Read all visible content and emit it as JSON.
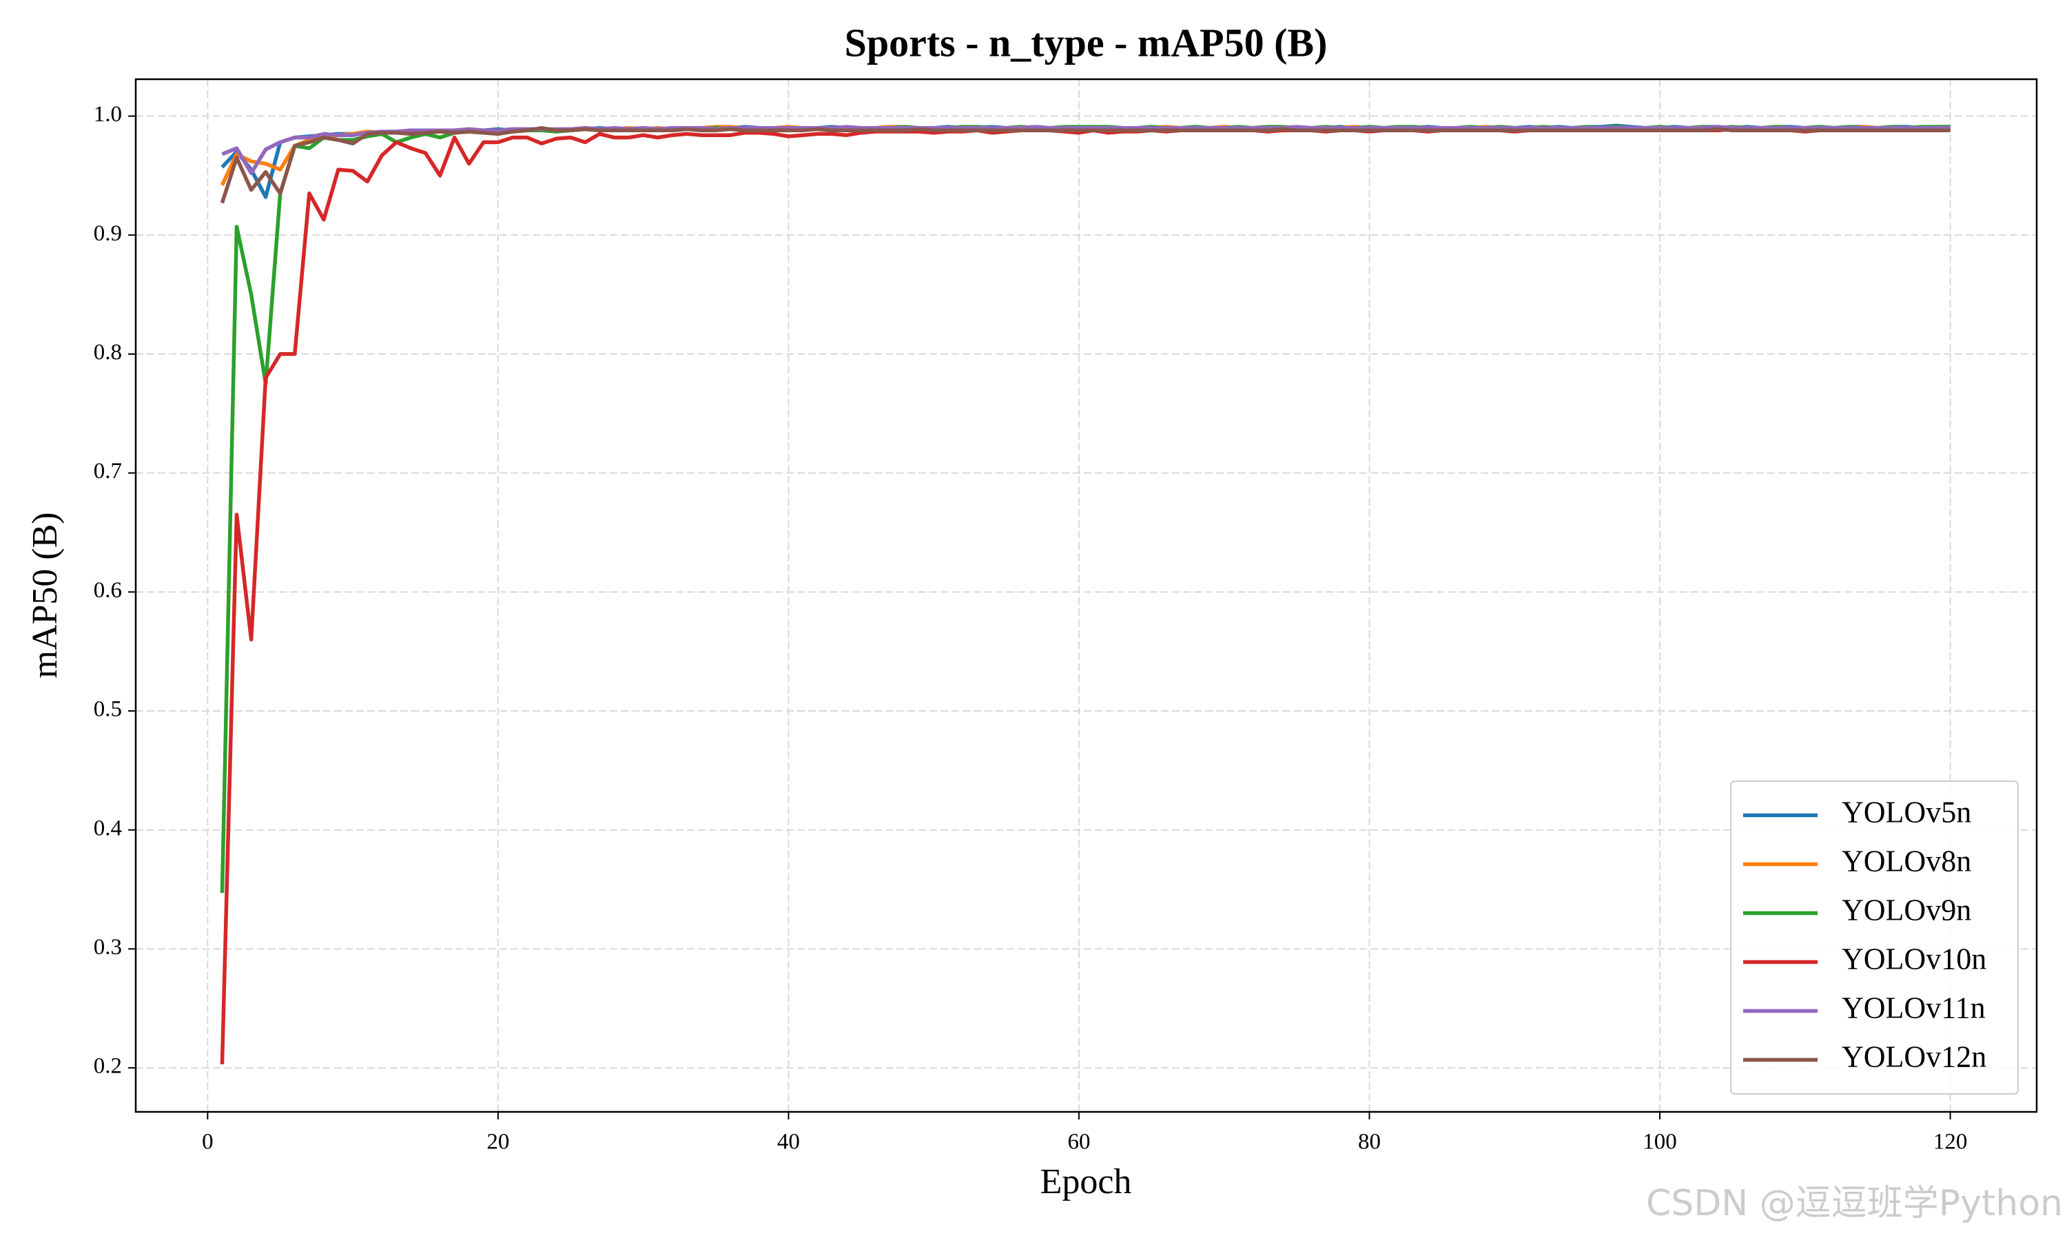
{
  "chart_data": {
    "type": "line",
    "title": "Sports - n_type - mAP50 (B)",
    "x_label": "Epoch",
    "y_label": "mAP50 (B)",
    "watermark": "CSDN @逗逗班学Python",
    "x": [
      1,
      2,
      3,
      4,
      5,
      6,
      7,
      8,
      9,
      10,
      11,
      12,
      13,
      14,
      15,
      16,
      17,
      18,
      19,
      20,
      21,
      22,
      23,
      24,
      25,
      26,
      27,
      28,
      29,
      30,
      31,
      32,
      33,
      34,
      35,
      36,
      37,
      38,
      39,
      40,
      41,
      42,
      43,
      44,
      45,
      46,
      47,
      48,
      49,
      50,
      51,
      52,
      53,
      54,
      55,
      56,
      57,
      58,
      59,
      60,
      61,
      62,
      63,
      64,
      65,
      66,
      67,
      68,
      69,
      70,
      71,
      72,
      73,
      74,
      75,
      76,
      77,
      78,
      79,
      80,
      81,
      82,
      83,
      84,
      85,
      86,
      87,
      88,
      89,
      90,
      91,
      92,
      93,
      94,
      95,
      96,
      97,
      98,
      99,
      100,
      101,
      102,
      103,
      104,
      105,
      106,
      107,
      108,
      109,
      110,
      111,
      112,
      113,
      114,
      115,
      116,
      117,
      118,
      119,
      120
    ],
    "series": [
      {
        "name": "YOLOv5n",
        "color": "#1f77b4",
        "values": [
          0.957,
          0.97,
          0.955,
          0.932,
          0.978,
          0.982,
          0.983,
          0.984,
          0.985,
          0.985,
          0.986,
          0.986,
          0.987,
          0.987,
          0.987,
          0.988,
          0.988,
          0.987,
          0.988,
          0.989,
          0.988,
          0.989,
          0.989,
          0.988,
          0.989,
          0.989,
          0.99,
          0.989,
          0.989,
          0.99,
          0.989,
          0.99,
          0.99,
          0.989,
          0.99,
          0.99,
          0.991,
          0.99,
          0.99,
          0.989,
          0.99,
          0.99,
          0.991,
          0.99,
          0.989,
          0.99,
          0.991,
          0.99,
          0.99,
          0.99,
          0.991,
          0.99,
          0.99,
          0.991,
          0.99,
          0.99,
          0.991,
          0.99,
          0.99,
          0.991,
          0.99,
          0.991,
          0.99,
          0.99,
          0.991,
          0.99,
          0.99,
          0.991,
          0.99,
          0.991,
          0.99,
          0.99,
          0.991,
          0.99,
          0.991,
          0.99,
          0.99,
          0.991,
          0.99,
          0.991,
          0.99,
          0.991,
          0.99,
          0.991,
          0.99,
          0.99,
          0.991,
          0.99,
          0.991,
          0.99,
          0.991,
          0.99,
          0.991,
          0.99,
          0.991,
          0.991,
          0.992,
          0.991,
          0.99,
          0.99,
          0.991,
          0.99,
          0.991,
          0.991,
          0.99,
          0.991,
          0.99,
          0.991,
          0.991,
          0.99,
          0.991,
          0.99,
          0.991,
          0.991,
          0.99,
          0.991,
          0.991,
          0.99,
          0.991,
          0.991
        ]
      },
      {
        "name": "YOLOv8n",
        "color": "#ff7f0e",
        "values": [
          0.942,
          0.968,
          0.962,
          0.96,
          0.955,
          0.975,
          0.98,
          0.982,
          0.984,
          0.985,
          0.987,
          0.986,
          0.987,
          0.988,
          0.987,
          0.988,
          0.988,
          0.989,
          0.988,
          0.988,
          0.989,
          0.989,
          0.988,
          0.989,
          0.989,
          0.99,
          0.989,
          0.989,
          0.99,
          0.989,
          0.99,
          0.989,
          0.99,
          0.99,
          0.991,
          0.991,
          0.99,
          0.989,
          0.99,
          0.991,
          0.99,
          0.99,
          0.989,
          0.99,
          0.99,
          0.99,
          0.991,
          0.991,
          0.99,
          0.99,
          0.99,
          0.991,
          0.99,
          0.99,
          0.99,
          0.991,
          0.99,
          0.99,
          0.99,
          0.99,
          0.991,
          0.99,
          0.99,
          0.99,
          0.99,
          0.991,
          0.99,
          0.99,
          0.99,
          0.991,
          0.99,
          0.99,
          0.991,
          0.991,
          0.99,
          0.99,
          0.99,
          0.99,
          0.991,
          0.99,
          0.99,
          0.99,
          0.991,
          0.99,
          0.99,
          0.99,
          0.99,
          0.991,
          0.99,
          0.99,
          0.99,
          0.991,
          0.99,
          0.99,
          0.99,
          0.99,
          0.991,
          0.99,
          0.99,
          0.99,
          0.99,
          0.99,
          0.991,
          0.99,
          0.99,
          0.99,
          0.99,
          0.991,
          0.99,
          0.99,
          0.99,
          0.99,
          0.99,
          0.991,
          0.99,
          0.99,
          0.99,
          0.99,
          0.99,
          0.99
        ]
      },
      {
        "name": "YOLOv9n",
        "color": "#2ca02c",
        "values": [
          0.347,
          0.907,
          0.85,
          0.775,
          0.935,
          0.975,
          0.973,
          0.982,
          0.98,
          0.98,
          0.983,
          0.985,
          0.978,
          0.982,
          0.985,
          0.982,
          0.986,
          0.987,
          0.986,
          0.987,
          0.987,
          0.988,
          0.988,
          0.987,
          0.988,
          0.989,
          0.988,
          0.988,
          0.989,
          0.989,
          0.989,
          0.988,
          0.989,
          0.989,
          0.99,
          0.989,
          0.989,
          0.99,
          0.989,
          0.99,
          0.989,
          0.99,
          0.99,
          0.989,
          0.99,
          0.99,
          0.99,
          0.991,
          0.99,
          0.99,
          0.99,
          0.991,
          0.991,
          0.99,
          0.99,
          0.991,
          0.99,
          0.99,
          0.991,
          0.991,
          0.991,
          0.991,
          0.99,
          0.99,
          0.991,
          0.99,
          0.99,
          0.991,
          0.99,
          0.99,
          0.991,
          0.99,
          0.991,
          0.991,
          0.99,
          0.99,
          0.991,
          0.99,
          0.99,
          0.991,
          0.99,
          0.991,
          0.991,
          0.99,
          0.99,
          0.99,
          0.991,
          0.99,
          0.991,
          0.99,
          0.99,
          0.991,
          0.99,
          0.99,
          0.991,
          0.99,
          0.991,
          0.99,
          0.99,
          0.991,
          0.99,
          0.99,
          0.991,
          0.99,
          0.991,
          0.99,
          0.99,
          0.991,
          0.99,
          0.99,
          0.991,
          0.99,
          0.991,
          0.99,
          0.99,
          0.991,
          0.99,
          0.991,
          0.991,
          0.991
        ]
      },
      {
        "name": "YOLOv10n",
        "color": "#d62728",
        "values": [
          0.203,
          0.665,
          0.56,
          0.78,
          0.8,
          0.8,
          0.935,
          0.913,
          0.955,
          0.954,
          0.945,
          0.967,
          0.978,
          0.973,
          0.969,
          0.95,
          0.982,
          0.96,
          0.978,
          0.978,
          0.982,
          0.982,
          0.977,
          0.981,
          0.982,
          0.978,
          0.985,
          0.982,
          0.982,
          0.984,
          0.982,
          0.984,
          0.985,
          0.984,
          0.984,
          0.984,
          0.986,
          0.986,
          0.985,
          0.983,
          0.984,
          0.985,
          0.985,
          0.984,
          0.986,
          0.987,
          0.987,
          0.987,
          0.987,
          0.986,
          0.987,
          0.987,
          0.988,
          0.986,
          0.987,
          0.988,
          0.988,
          0.988,
          0.987,
          0.986,
          0.988,
          0.986,
          0.987,
          0.987,
          0.988,
          0.987,
          0.988,
          0.988,
          0.988,
          0.988,
          0.989,
          0.988,
          0.987,
          0.988,
          0.988,
          0.988,
          0.987,
          0.988,
          0.988,
          0.987,
          0.988,
          0.988,
          0.988,
          0.987,
          0.988,
          0.988,
          0.988,
          0.988,
          0.988,
          0.987,
          0.988,
          0.988,
          0.988,
          0.988,
          0.988,
          0.988,
          0.988,
          0.988,
          0.988,
          0.988,
          0.988,
          0.988,
          0.988,
          0.988,
          0.989,
          0.988,
          0.988,
          0.988,
          0.988,
          0.987,
          0.988,
          0.988,
          0.988,
          0.988,
          0.988,
          0.988,
          0.988,
          0.988,
          0.988,
          0.988
        ]
      },
      {
        "name": "YOLOv11n",
        "color": "#9467bd",
        "values": [
          0.968,
          0.973,
          0.952,
          0.972,
          0.978,
          0.982,
          0.982,
          0.985,
          0.984,
          0.984,
          0.986,
          0.987,
          0.987,
          0.988,
          0.988,
          0.988,
          0.988,
          0.989,
          0.988,
          0.988,
          0.989,
          0.989,
          0.989,
          0.989,
          0.989,
          0.99,
          0.989,
          0.99,
          0.989,
          0.99,
          0.989,
          0.99,
          0.99,
          0.99,
          0.989,
          0.99,
          0.99,
          0.99,
          0.99,
          0.99,
          0.99,
          0.99,
          0.99,
          0.991,
          0.99,
          0.99,
          0.99,
          0.99,
          0.99,
          0.99,
          0.99,
          0.99,
          0.99,
          0.99,
          0.99,
          0.99,
          0.991,
          0.99,
          0.99,
          0.99,
          0.99,
          0.99,
          0.99,
          0.99,
          0.99,
          0.99,
          0.99,
          0.99,
          0.99,
          0.99,
          0.99,
          0.99,
          0.99,
          0.99,
          0.991,
          0.99,
          0.99,
          0.99,
          0.99,
          0.99,
          0.99,
          0.99,
          0.99,
          0.99,
          0.99,
          0.99,
          0.99,
          0.99,
          0.99,
          0.99,
          0.99,
          0.99,
          0.99,
          0.99,
          0.99,
          0.99,
          0.99,
          0.99,
          0.99,
          0.99,
          0.99,
          0.99,
          0.99,
          0.991,
          0.99,
          0.99,
          0.99,
          0.99,
          0.99,
          0.99,
          0.99,
          0.99,
          0.99,
          0.99,
          0.99,
          0.99,
          0.99,
          0.99,
          0.99,
          0.99
        ]
      },
      {
        "name": "YOLOv12n",
        "color": "#8c564b",
        "values": [
          0.927,
          0.965,
          0.938,
          0.953,
          0.935,
          0.975,
          0.978,
          0.982,
          0.98,
          0.977,
          0.985,
          0.986,
          0.986,
          0.985,
          0.986,
          0.987,
          0.986,
          0.987,
          0.986,
          0.985,
          0.987,
          0.988,
          0.99,
          0.988,
          0.988,
          0.989,
          0.988,
          0.988,
          0.988,
          0.988,
          0.988,
          0.988,
          0.989,
          0.988,
          0.988,
          0.989,
          0.988,
          0.988,
          0.988,
          0.988,
          0.988,
          0.989,
          0.988,
          0.988,
          0.988,
          0.988,
          0.988,
          0.988,
          0.989,
          0.988,
          0.988,
          0.988,
          0.988,
          0.988,
          0.988,
          0.988,
          0.988,
          0.988,
          0.988,
          0.988,
          0.988,
          0.988,
          0.988,
          0.988,
          0.988,
          0.988,
          0.988,
          0.988,
          0.988,
          0.988,
          0.988,
          0.988,
          0.988,
          0.989,
          0.988,
          0.988,
          0.988,
          0.988,
          0.988,
          0.988,
          0.988,
          0.988,
          0.988,
          0.988,
          0.988,
          0.988,
          0.988,
          0.988,
          0.988,
          0.988,
          0.988,
          0.988,
          0.988,
          0.988,
          0.988,
          0.988,
          0.988,
          0.988,
          0.988,
          0.988,
          0.988,
          0.988,
          0.988,
          0.989,
          0.988,
          0.988,
          0.988,
          0.988,
          0.988,
          0.988,
          0.988,
          0.988,
          0.988,
          0.988,
          0.988,
          0.988,
          0.988,
          0.988,
          0.988,
          0.988
        ]
      }
    ],
    "xlim": [
      -4.95,
      125.95
    ],
    "ylim": [
      0.163,
      1.031
    ],
    "xticks": [
      0,
      20,
      40,
      60,
      80,
      100,
      120
    ],
    "yticks": [
      0.2,
      0.3,
      0.4,
      0.5,
      0.6,
      0.7,
      0.8,
      0.9,
      {
        "value": 1,
        "label": "1.0"
      }
    ],
    "grid": true,
    "legend_loc": "lower right"
  }
}
